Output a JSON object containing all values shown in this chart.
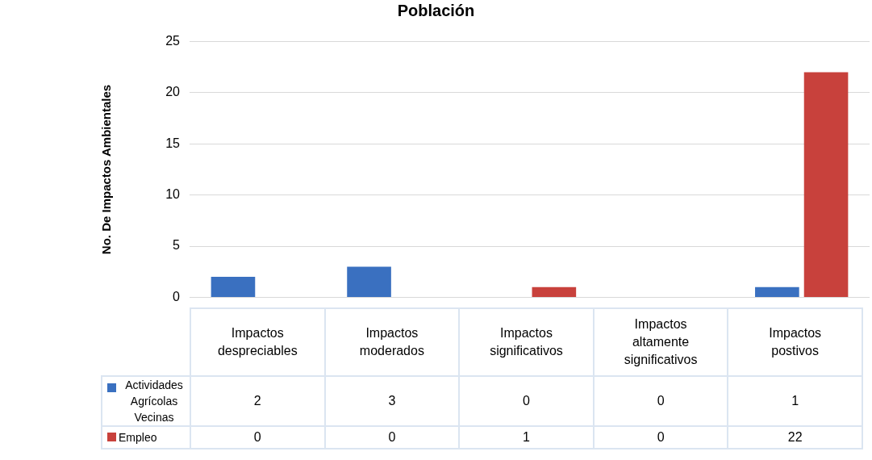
{
  "chart_data": {
    "type": "bar",
    "title": "Población",
    "ylabel": "No. De Impactos Ambientales",
    "categories": [
      "Impactos despreciables",
      "Impactos moderados",
      "Impactos significativos",
      "Impactos altamente significativos",
      "Impactos postivos"
    ],
    "series": [
      {
        "name": "Actividades Agrícolas Vecinas",
        "color": "#3a70c0",
        "values": [
          2,
          3,
          0,
          0,
          1
        ]
      },
      {
        "name": "Empleo",
        "color": "#c8413c",
        "values": [
          0,
          0,
          1,
          0,
          22
        ]
      }
    ],
    "ylim": [
      0,
      25
    ],
    "yticks": [
      0,
      5,
      10,
      15,
      20,
      25
    ],
    "grid": "y",
    "legend": "bottom",
    "data_labels": true
  }
}
